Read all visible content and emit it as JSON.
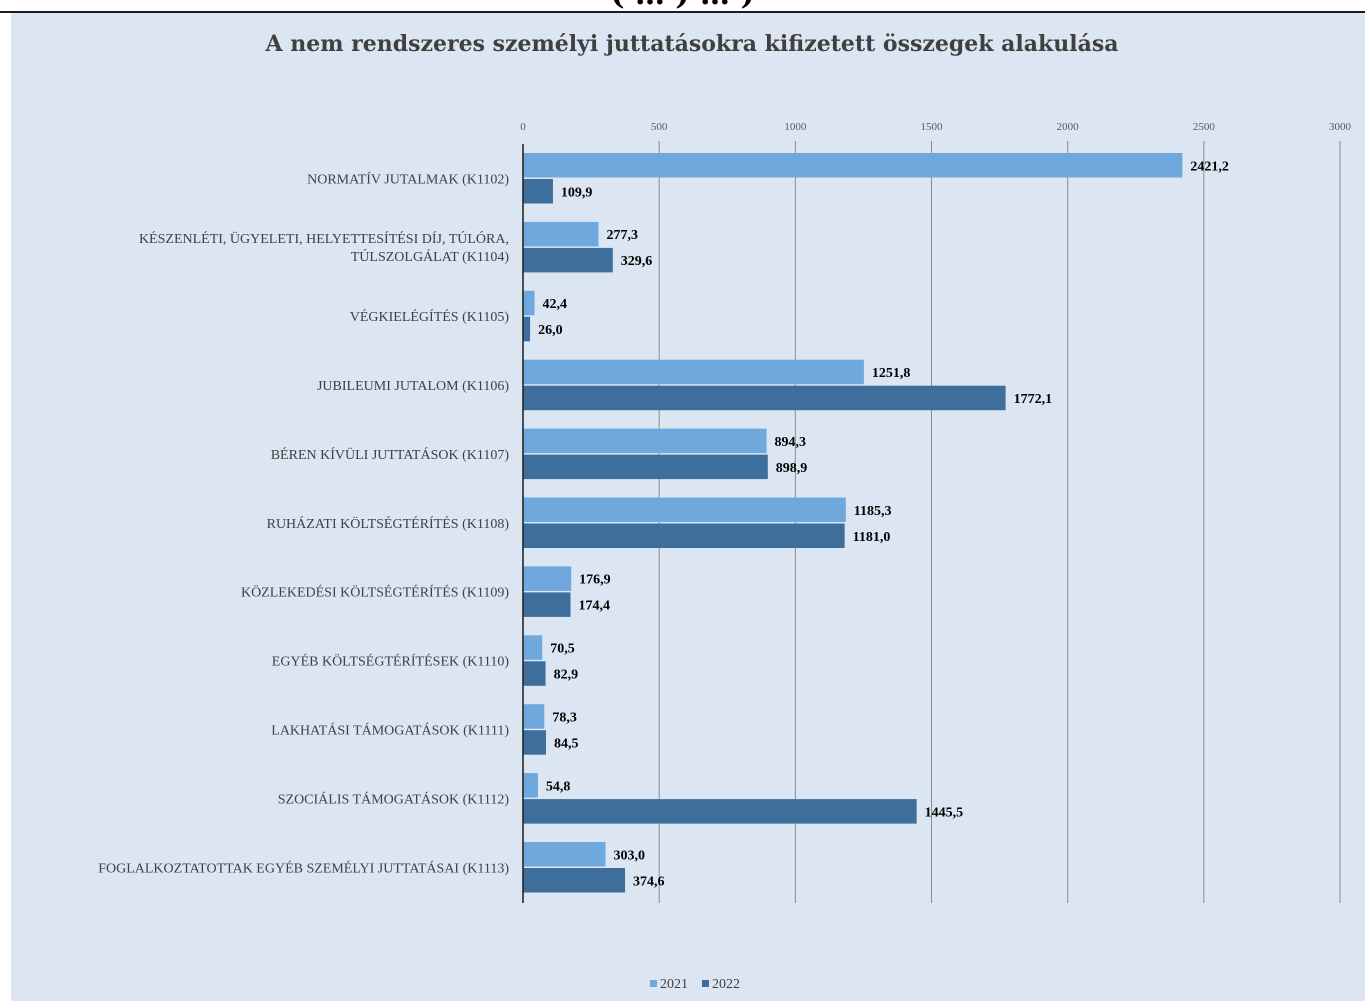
{
  "page": {
    "top_fragment": "( … ) … )"
  },
  "chart_data": {
    "type": "bar",
    "orientation": "horizontal",
    "title": "A nem rendszeres személyi juttatásokra kifizetett összegek alakulása",
    "categories": [
      "NORMATÍV JUTALMAK (K1102)",
      "KÉSZENLÉTI, ÜGYELETI, HELYETTESÍTÉSI DÍJ, TÚLÓRA, TÚLSZOLGÁLAT (K1104)",
      "VÉGKIELÉGÍTÉS (K1105)",
      "JUBILEUMI JUTALOM (K1106)",
      "BÉREN KÍVÜLI JUTTATÁSOK (K1107)",
      "RUHÁZATI KÖLTSÉGTÉRÍTÉS (K1108)",
      "KÖZLEKEDÉSI KÖLTSÉGTÉRÍTÉS (K1109)",
      "EGYÉB KÖLTSÉGTÉRÍTÉSEK (K1110)",
      "LAKHATÁSI TÁMOGATÁSOK (K1111)",
      "SZOCIÁLIS TÁMOGATÁSOK (K1112)",
      "FOGLALKOZTATOTTAK EGYÉB SZEMÉLYI JUTTATÁSAI (K1113)"
    ],
    "category_lines": [
      [
        "NORMATÍV JUTALMAK (K1102)"
      ],
      [
        "KÉSZENLÉTI, ÜGYELETI, HELYETTESÍTÉSI DÍJ, TÚLÓRA,",
        "TÚLSZOLGÁLAT (K1104)"
      ],
      [
        "VÉGKIELÉGÍTÉS (K1105)"
      ],
      [
        "JUBILEUMI JUTALOM (K1106)"
      ],
      [
        "BÉREN KÍVÜLI JUTTATÁSOK (K1107)"
      ],
      [
        "RUHÁZATI KÖLTSÉGTÉRÍTÉS (K1108)"
      ],
      [
        "KÖZLEKEDÉSI KÖLTSÉGTÉRÍTÉS (K1109)"
      ],
      [
        "EGYÉB KÖLTSÉGTÉRÍTÉSEK (K1110)"
      ],
      [
        "LAKHATÁSI TÁMOGATÁSOK (K1111)"
      ],
      [
        "SZOCIÁLIS TÁMOGATÁSOK (K1112)"
      ],
      [
        "FOGLALKOZTATOTTAK EGYÉB SZEMÉLYI JUTTATÁSAI (K1113)"
      ]
    ],
    "series": [
      {
        "name": "2021",
        "color": "#6fa8dc",
        "values": [
          2421.2,
          277.3,
          42.4,
          1251.8,
          894.3,
          1185.3,
          176.9,
          70.5,
          78.3,
          54.8,
          303.0
        ],
        "labels": [
          "2421,2",
          "277,3",
          "42,4",
          "1251,8",
          "894,3",
          "1185,3",
          "176,9",
          "70,5",
          "78,3",
          "54,8",
          "303,0"
        ]
      },
      {
        "name": "2022",
        "color": "#3d6e9c",
        "values": [
          109.9,
          329.6,
          26.0,
          1772.1,
          898.9,
          1181.0,
          174.4,
          82.9,
          84.5,
          1445.5,
          374.6
        ],
        "labels": [
          "109,9",
          "329,6",
          "26,0",
          "1772,1",
          "898,9",
          "1181,0",
          "174,4",
          "82,9",
          "84,5",
          "1445,5",
          "374,6"
        ]
      }
    ],
    "x_ticks": [
      0,
      500,
      1000,
      1500,
      2000,
      2500,
      3000
    ],
    "x_tick_labels": [
      "0",
      "500",
      "1000",
      "1500",
      "2000",
      "2500",
      "3000"
    ],
    "xlim": [
      0,
      3000
    ],
    "axis_position": "top",
    "grid": true,
    "legend": "bottom-center",
    "background_color": "#dce6f2",
    "gridline_color": "#8c8c8c"
  }
}
